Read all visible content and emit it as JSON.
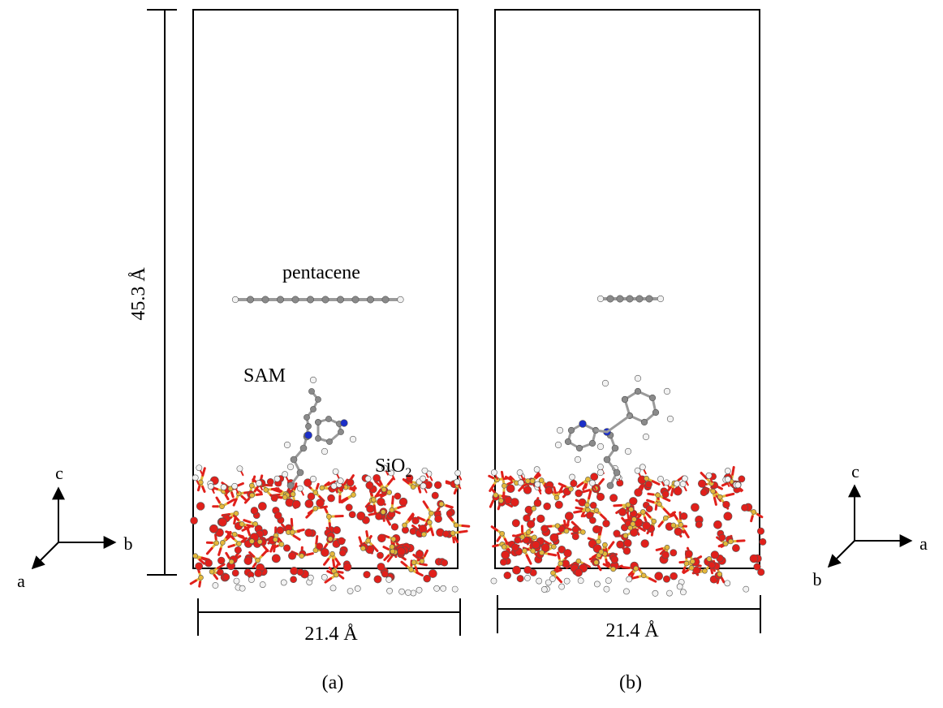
{
  "height_label": "45.3 Å",
  "panel_a": {
    "caption": "(a)",
    "width_label": "21.4 Å",
    "molecule_label": "pentacene",
    "sam_label": "SAM",
    "substrate_label_main": "SiO",
    "substrate_label_sub": "2"
  },
  "panel_b": {
    "caption": "(b)",
    "width_label": "21.4 Å"
  },
  "axes_a": {
    "up": "c",
    "right": "b",
    "diag": "a"
  },
  "axes_b": {
    "up": "c",
    "right": "a",
    "diag": "b"
  },
  "atom_colors": {
    "oxygen": "#e0201b",
    "silicon": "#e4b83a",
    "hydrogen": "#f2f2f2",
    "carbon": "#8a8a8a",
    "nitrogen": "#1c2fc8"
  }
}
